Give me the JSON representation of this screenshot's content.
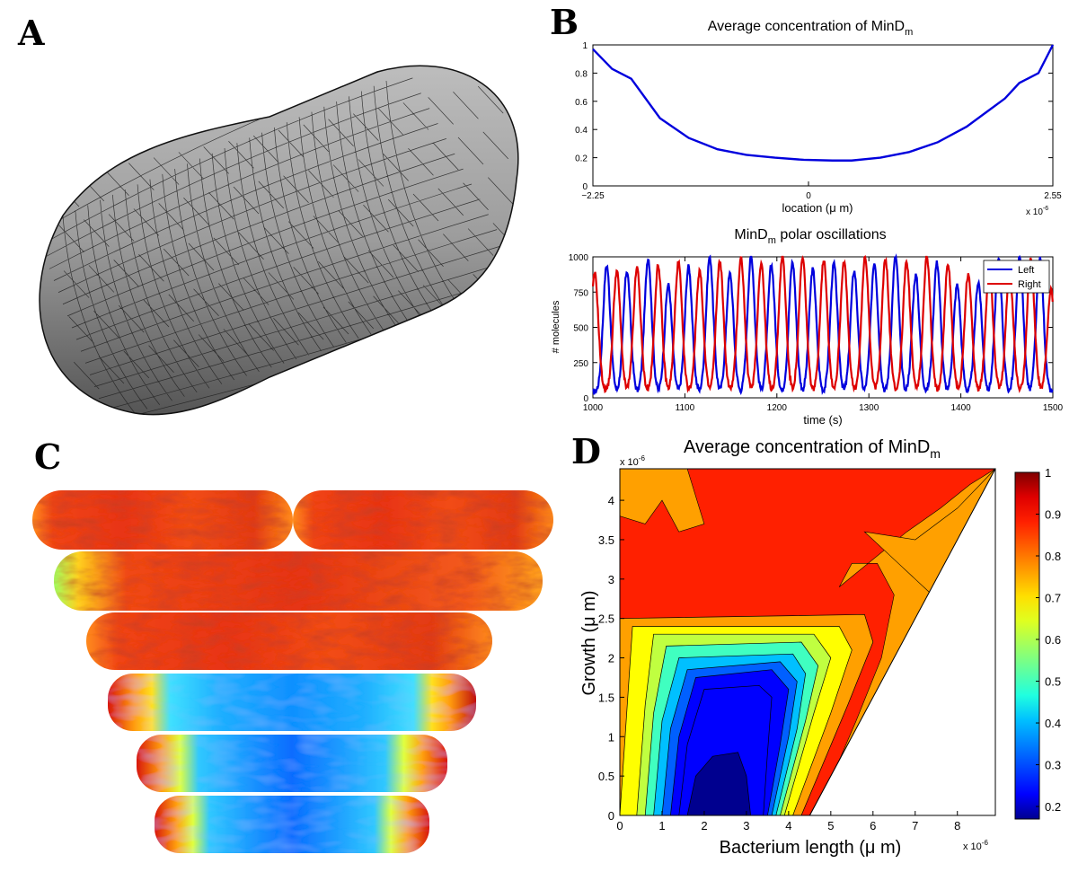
{
  "panels": {
    "a": {
      "letter": "A"
    },
    "b": {
      "letter": "B"
    },
    "c": {
      "letter": "C"
    },
    "d": {
      "letter": "D"
    }
  },
  "chart_data": [
    {
      "id": "avg-profile",
      "type": "line",
      "title": "Average concentration of MinD",
      "title_subscript": "m",
      "xlabel": "location (μ m)",
      "ylabel": "",
      "x_multiplier": "x 10",
      "x_multiplier_exp": "-6",
      "xlim": [
        -2.25,
        2.55
      ],
      "ylim": [
        0,
        1
      ],
      "x_ticks": [
        -2.25,
        0,
        2.55
      ],
      "x_tick_labels": [
        "−2.25",
        "0",
        "2.55"
      ],
      "y_ticks": [
        0,
        0.2,
        0.4,
        0.6,
        0.8,
        1
      ],
      "y_tick_labels": [
        "0",
        "0.2",
        "0.4",
        "0.6",
        "0.8",
        "1"
      ],
      "grid": false,
      "series": [
        {
          "color": "#0000dd",
          "x": [
            -2.25,
            -2.05,
            -1.85,
            -1.55,
            -1.25,
            -0.95,
            -0.65,
            -0.35,
            -0.05,
            0.25,
            0.45,
            0.75,
            1.05,
            1.35,
            1.65,
            1.85,
            2.05,
            2.2,
            2.4,
            2.55
          ],
          "y": [
            0.97,
            0.83,
            0.76,
            0.48,
            0.34,
            0.26,
            0.22,
            0.2,
            0.185,
            0.18,
            0.18,
            0.2,
            0.24,
            0.31,
            0.42,
            0.52,
            0.62,
            0.73,
            0.8,
            1.0
          ]
        }
      ]
    },
    {
      "id": "oscillations",
      "type": "line",
      "title": "MinD",
      "title_subscript": "m",
      "title_suffix": " polar oscillations",
      "xlabel": "time (s)",
      "ylabel": "# molecules",
      "xlim": [
        1000,
        1500
      ],
      "ylim": [
        0,
        1000
      ],
      "x_ticks": [
        1000,
        1100,
        1200,
        1300,
        1400,
        1500
      ],
      "y_ticks": [
        0,
        250,
        500,
        750,
        1000
      ],
      "legend": {
        "position": "top-right",
        "entries": [
          "Left",
          "Right"
        ]
      },
      "grid": false,
      "period_s": 22.5,
      "series": [
        {
          "name": "Left",
          "color": "#0000dd",
          "peak_times": [
            1015,
            1037,
            1060,
            1082,
            1104,
            1127,
            1149,
            1172,
            1194,
            1217,
            1239,
            1262,
            1284,
            1306,
            1329,
            1351,
            1374,
            1396,
            1419,
            1441,
            1464,
            1486
          ],
          "peak_values": [
            940,
            900,
            990,
            800,
            930,
            1000,
            880,
            1000,
            940,
            960,
            910,
            950,
            900,
            960,
            1000,
            870,
            960,
            800,
            820,
            980,
            1000,
            990
          ],
          "trough": 40
        },
        {
          "name": "Right",
          "color": "#dd0000",
          "peak_times": [
            1002,
            1026,
            1048,
            1071,
            1093,
            1116,
            1138,
            1161,
            1183,
            1206,
            1228,
            1251,
            1273,
            1296,
            1318,
            1341,
            1363,
            1386,
            1408,
            1431,
            1453,
            1476,
            1498
          ],
          "peak_values": [
            880,
            900,
            920,
            940,
            960,
            900,
            970,
            990,
            960,
            1000,
            990,
            980,
            970,
            1000,
            980,
            960,
            1000,
            950,
            880,
            930,
            900,
            990,
            760
          ],
          "trough": 50
        }
      ]
    },
    {
      "id": "contour",
      "type": "heatmap",
      "title": "Average concentration of MinD",
      "title_subscript": "m",
      "xlabel": "Bacterium length (μ m)",
      "ylabel": "Growth (μ m)",
      "x_multiplier": "x 10",
      "x_multiplier_exp": "-6",
      "y_multiplier": "x 10",
      "y_multiplier_exp": "-6",
      "xlim": [
        0,
        8.9
      ],
      "ylim": [
        0,
        4.4
      ],
      "x_ticks": [
        0,
        1,
        2,
        3,
        4,
        5,
        6,
        7,
        8
      ],
      "y_ticks": [
        0,
        0.5,
        1,
        1.5,
        2,
        2.5,
        3,
        3.5,
        4
      ],
      "y_tick_labels": [
        "0",
        "0.5",
        "1",
        "1.5",
        "2",
        "2.5",
        "3",
        "3.5",
        "4"
      ],
      "colorbar": {
        "min": 0.17,
        "max": 1,
        "ticks": [
          0.2,
          0.3,
          0.4,
          0.5,
          0.6,
          0.7,
          0.8,
          0.9,
          1
        ],
        "tick_labels": [
          "0.2",
          "0.3",
          "0.4",
          "0.5",
          "0.6",
          "0.7",
          "0.8",
          "0.9",
          "1"
        ]
      },
      "level_colors": [
        "#00008f",
        "#0000ff",
        "#0060ff",
        "#00c0ff",
        "#40ffc0",
        "#c0ff40",
        "#ffff00",
        "#ffa000",
        "#ff2000",
        "#df0000"
      ]
    }
  ],
  "cell_strips": [
    {
      "kind": "dividing",
      "profile": "red"
    },
    {
      "kind": "single",
      "profile": "red"
    },
    {
      "kind": "single",
      "profile": "red"
    },
    {
      "kind": "single",
      "profile": "blue"
    },
    {
      "kind": "single",
      "profile": "blue"
    },
    {
      "kind": "single",
      "profile": "blue"
    }
  ],
  "legend_labels": {
    "left": "Left",
    "right": "Right"
  }
}
